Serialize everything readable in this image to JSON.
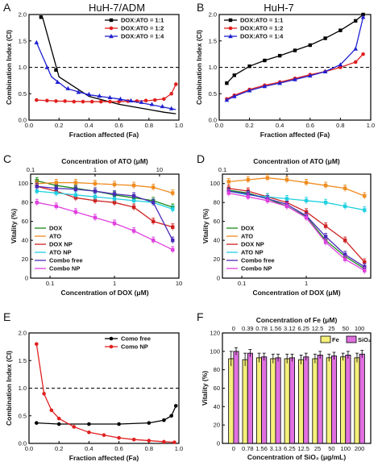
{
  "chart_data": [
    {
      "panel": "A",
      "type": "line",
      "title": "HuH-7/ADM",
      "xlabel": "Fraction affected (Fa)",
      "ylabel": "Combination Index (CI)",
      "xlim": [
        0,
        1.0
      ],
      "ylim": [
        0,
        2.0
      ],
      "xticks": [
        "0.0",
        "0.2",
        "0.4",
        "0.6",
        "0.8",
        "1.0"
      ],
      "yticks": [
        "0.0",
        "0.5",
        "1.0",
        "1.5",
        "2.0"
      ],
      "refline": 1.0,
      "legend_position": "top-right",
      "series": [
        {
          "name": "DOX:ATO = 1:1",
          "color": "#000000",
          "marker": "square",
          "x": [
            0.09,
            0.2,
            0.4,
            0.6,
            0.8,
            0.9,
            0.98
          ],
          "y": [
            1.95,
            0.82,
            0.45,
            0.3,
            0.2,
            0.15,
            0.12
          ],
          "marker_x": [
            0.08,
            0.18
          ],
          "marker_y": [
            1.95,
            0.95
          ]
        },
        {
          "name": "DOX:ATO = 1:2",
          "color": "#e02020",
          "marker": "circle",
          "x": [
            0.05,
            0.2,
            0.4,
            0.6,
            0.8,
            0.9,
            0.95,
            0.98
          ],
          "y": [
            0.38,
            0.36,
            0.35,
            0.35,
            0.37,
            0.4,
            0.5,
            0.68
          ],
          "marker_x": [
            0.05,
            0.12,
            0.18,
            0.24,
            0.3,
            0.36,
            0.42,
            0.48,
            0.54,
            0.6,
            0.66,
            0.72,
            0.78,
            0.84,
            0.9,
            0.95,
            0.98
          ],
          "marker_y": [
            0.38,
            0.37,
            0.36,
            0.36,
            0.35,
            0.35,
            0.35,
            0.35,
            0.35,
            0.35,
            0.36,
            0.36,
            0.37,
            0.38,
            0.4,
            0.5,
            0.68
          ]
        },
        {
          "name": "DOX:ATO = 1:4",
          "color": "#2020d0",
          "marker": "triangle",
          "x": [
            0.05,
            0.15,
            0.25,
            0.4,
            0.6,
            0.8,
            0.98
          ],
          "y": [
            1.47,
            0.82,
            0.6,
            0.48,
            0.4,
            0.3,
            0.2
          ],
          "marker_x": [
            0.05,
            0.12,
            0.19,
            0.26,
            0.33,
            0.4,
            0.47,
            0.54,
            0.61,
            0.68,
            0.75,
            0.82,
            0.89,
            0.95
          ],
          "marker_y": [
            1.47,
            1.0,
            0.72,
            0.6,
            0.53,
            0.49,
            0.46,
            0.43,
            0.4,
            0.37,
            0.34,
            0.3,
            0.26,
            0.22
          ]
        }
      ]
    },
    {
      "panel": "B",
      "type": "line",
      "title": "HuH-7",
      "xlabel": "Fraction affected (Fa)",
      "ylabel": "Combination Index (CI)",
      "xlim": [
        0,
        1.0
      ],
      "ylim": [
        0,
        2.0
      ],
      "xticks": [
        "0.0",
        "0.2",
        "0.4",
        "0.6",
        "0.8",
        "1.0"
      ],
      "yticks": [
        "0.0",
        "0.5",
        "1.0",
        "1.5",
        "2.0"
      ],
      "refline": 1.0,
      "legend_position": "top-left",
      "series": [
        {
          "name": "DOX:ATO = 1:1",
          "color": "#000000",
          "marker": "square",
          "x": [
            0.05,
            0.1,
            0.2,
            0.3,
            0.4,
            0.5,
            0.6,
            0.7,
            0.8,
            0.9,
            0.95
          ],
          "y": [
            0.7,
            0.85,
            1.02,
            1.13,
            1.22,
            1.32,
            1.42,
            1.55,
            1.7,
            1.88,
            2.0
          ]
        },
        {
          "name": "DOX:ATO = 1:2",
          "color": "#e02020",
          "marker": "circle",
          "x": [
            0.05,
            0.1,
            0.2,
            0.3,
            0.4,
            0.5,
            0.6,
            0.7,
            0.8,
            0.9,
            0.95
          ],
          "y": [
            0.4,
            0.47,
            0.58,
            0.66,
            0.72,
            0.79,
            0.86,
            0.92,
            1.0,
            1.1,
            1.25
          ]
        },
        {
          "name": "DOX:ATO = 1:4",
          "color": "#2020d0",
          "marker": "triangle",
          "x": [
            0.05,
            0.1,
            0.2,
            0.3,
            0.4,
            0.5,
            0.6,
            0.7,
            0.8,
            0.9,
            0.95
          ],
          "y": [
            0.38,
            0.45,
            0.56,
            0.64,
            0.7,
            0.77,
            0.84,
            0.92,
            1.05,
            1.35,
            1.95
          ]
        }
      ]
    },
    {
      "panel": "C",
      "type": "line",
      "xlabel": "Concentration of DOX (μM)",
      "x2label": "Concentration of ATO (μM)",
      "ylabel": "Vitality (%)",
      "xscale": "log",
      "ylim": [
        0,
        110
      ],
      "xlim": [
        0.05,
        10
      ],
      "xticks": [
        "0.1",
        "1",
        "10"
      ],
      "x2ticks": [
        "0.1",
        "1",
        "10"
      ],
      "yticks": [
        "0",
        "20",
        "40",
        "60",
        "80",
        "100"
      ],
      "legend_position": "bottom-left",
      "series": [
        {
          "name": "DOX",
          "color": "#1a8a1a",
          "x": [
            0.0625,
            0.125,
            0.25,
            0.5,
            1,
            2,
            4,
            8
          ],
          "y": [
            103,
            98,
            95,
            92,
            88,
            85,
            82,
            75
          ]
        },
        {
          "name": "ATO",
          "color": "#f08c20",
          "x": [
            0.0625,
            0.125,
            0.25,
            0.5,
            1,
            2,
            4,
            8
          ],
          "y": [
            100,
            101,
            101,
            100,
            99,
            98,
            96,
            90
          ]
        },
        {
          "name": "DOX NP",
          "color": "#d02020",
          "x": [
            0.0625,
            0.125,
            0.25,
            0.5,
            1,
            2,
            4,
            8
          ],
          "y": [
            97,
            92,
            85,
            82,
            80,
            75,
            60,
            54
          ]
        },
        {
          "name": "ATO NP",
          "color": "#20d0e0",
          "x": [
            0.0625,
            0.125,
            0.25,
            0.5,
            1,
            2,
            4,
            8
          ],
          "y": [
            92,
            90,
            88,
            86,
            84,
            82,
            80,
            73
          ]
        },
        {
          "name": "Combo free",
          "color": "#4a2ab8",
          "x": [
            0.0625,
            0.125,
            0.25,
            0.5,
            1,
            2,
            4,
            8
          ],
          "y": [
            97,
            95,
            94,
            92,
            89,
            87,
            80,
            40
          ]
        },
        {
          "name": "Combo NP",
          "color": "#e040e0",
          "x": [
            0.0625,
            0.125,
            0.25,
            0.5,
            1,
            2,
            4,
            8
          ],
          "y": [
            80,
            76,
            70,
            64,
            58,
            50,
            40,
            30
          ]
        }
      ]
    },
    {
      "panel": "D",
      "type": "line",
      "xlabel": "Concentration of DOX (μM)",
      "x2label": "Concentration of ATO (μM)",
      "ylabel": "Vitality (%)",
      "xscale": "log",
      "ylim": [
        0,
        110
      ],
      "xlim": [
        0.05,
        10
      ],
      "xticks": [
        "0.1",
        "1"
      ],
      "x2ticks": [
        "0.1",
        "1"
      ],
      "yticks": [
        "0",
        "20",
        "40",
        "60",
        "80",
        "100"
      ],
      "legend_position": "bottom-left",
      "series": [
        {
          "name": "DOX",
          "color": "#1a8a1a",
          "x": [
            0.0625,
            0.125,
            0.25,
            0.5,
            1,
            2,
            4,
            8
          ],
          "y": [
            93,
            90,
            84,
            76,
            65,
            40,
            23,
            10
          ]
        },
        {
          "name": "ATO",
          "color": "#f08c20",
          "x": [
            0.0625,
            0.125,
            0.25,
            0.5,
            1,
            2,
            4,
            8
          ],
          "y": [
            102,
            104,
            106,
            104,
            101,
            98,
            95,
            87
          ]
        },
        {
          "name": "DOX NP",
          "color": "#d02020",
          "x": [
            0.0625,
            0.125,
            0.25,
            0.5,
            1,
            2,
            4,
            8
          ],
          "y": [
            95,
            92,
            86,
            80,
            70,
            55,
            40,
            17
          ]
        },
        {
          "name": "ATO NP",
          "color": "#20d0e0",
          "x": [
            0.0625,
            0.125,
            0.25,
            0.5,
            1,
            2,
            4,
            8
          ],
          "y": [
            92,
            88,
            86,
            84,
            82,
            80,
            76,
            72
          ]
        },
        {
          "name": "Combo free",
          "color": "#4a2ab8",
          "x": [
            0.0625,
            0.125,
            0.25,
            0.5,
            1,
            2,
            4,
            8
          ],
          "y": [
            92,
            89,
            84,
            78,
            66,
            44,
            25,
            12
          ]
        },
        {
          "name": "Combo NP",
          "color": "#e040e0",
          "x": [
            0.0625,
            0.125,
            0.25,
            0.5,
            1,
            2,
            4,
            8
          ],
          "y": [
            90,
            86,
            82,
            76,
            64,
            38,
            20,
            8
          ]
        }
      ]
    },
    {
      "panel": "E",
      "type": "line",
      "xlabel": "Fraction affected (Fa)",
      "ylabel": "Combination Index (CI)",
      "xlim": [
        0,
        1.0
      ],
      "ylim": [
        0,
        2.0
      ],
      "xticks": [
        "0.0",
        "0.2",
        "0.4",
        "0.6",
        "0.8",
        "1.0"
      ],
      "yticks": [
        "0.0",
        "0.5",
        "1.0",
        "1.5",
        "2.0"
      ],
      "refline": 1.0,
      "legend_position": "top-right",
      "series": [
        {
          "name": "Como free",
          "color": "#000000",
          "marker": "circle",
          "x": [
            0.05,
            0.2,
            0.4,
            0.6,
            0.8,
            0.9,
            0.95,
            0.98
          ],
          "y": [
            0.37,
            0.35,
            0.35,
            0.35,
            0.37,
            0.42,
            0.5,
            0.68
          ]
        },
        {
          "name": "Como NP",
          "color": "#e02020",
          "marker": "circle",
          "x": [
            0.05,
            0.1,
            0.15,
            0.2,
            0.3,
            0.4,
            0.5,
            0.6,
            0.7,
            0.8,
            0.9,
            0.97
          ],
          "y": [
            1.8,
            0.9,
            0.6,
            0.45,
            0.3,
            0.2,
            0.15,
            0.1,
            0.07,
            0.05,
            0.03,
            0.02
          ]
        }
      ]
    },
    {
      "panel": "F",
      "type": "bar",
      "xlabel": "Concentration of SiO₂ (μg/mL)",
      "x2label": "Concentration of Fe (μM)",
      "ylabel": "Vitality (%)",
      "ylim": [
        0,
        120
      ],
      "categories": [
        "0",
        "0.78",
        "1.56",
        "3.13",
        "6.25",
        "12.5",
        "25",
        "50",
        "100",
        "200"
      ],
      "top_categories": [
        "0",
        "0.39",
        "0.78",
        "1.56",
        "3.12",
        "6.25",
        "12.5",
        "25",
        "50",
        "100"
      ],
      "yticks": [
        "0",
        "20",
        "40",
        "60",
        "80",
        "100",
        "120"
      ],
      "legend_position": "top-right",
      "series": [
        {
          "name": "Fe",
          "color": "#f5f07a",
          "values": [
            92,
            91,
            93,
            92,
            92,
            91,
            92,
            93,
            94,
            93
          ],
          "errors": [
            8,
            7,
            5,
            5,
            5,
            5,
            5,
            4,
            4,
            5
          ]
        },
        {
          "name": "SiO₂",
          "color": "#e070e0",
          "values": [
            100,
            98,
            94,
            93,
            93,
            94,
            96,
            95,
            96,
            97
          ],
          "errors": [
            4,
            4,
            4,
            4,
            4,
            4,
            4,
            4,
            4,
            4
          ]
        }
      ]
    }
  ]
}
